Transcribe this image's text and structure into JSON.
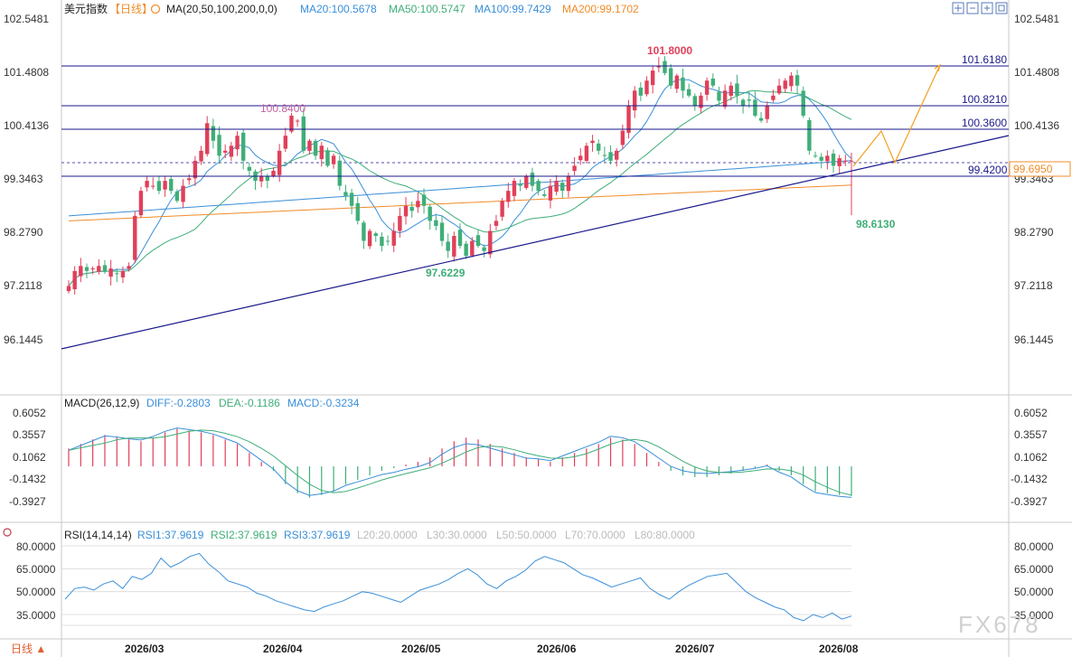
{
  "header": {
    "symbol": "美元指数",
    "period": "【日线】",
    "ma_params": "MA(20,50,100,200,0,0)",
    "ma20": "MA20:100.5678",
    "ma50": "MA50:100.5747",
    "ma100": "MA100:99.7429",
    "ma200": "MA200:99.1702"
  },
  "price_axis": {
    "ticks": [
      "102.5481",
      "101.4808",
      "100.4136",
      "99.3463",
      "98.2790",
      "97.2118",
      "96.1445"
    ],
    "right_ticks": [
      "102.5481",
      "101.4808",
      "100.4136",
      "99.3463",
      "98.2790",
      "97.2118",
      "96.1445"
    ],
    "current_price": "99.6950"
  },
  "annotations": {
    "high": "101.8000",
    "low_may": "97.6229",
    "high_march": "100.8400",
    "low_current": "98.6130",
    "levels": [
      "101.6180",
      "100.8210",
      "100.3600",
      "99.4200"
    ]
  },
  "macd": {
    "title": "MACD(26,12,9)",
    "diff": "DIFF:-0.2803",
    "dea": "DEA:-0.1186",
    "macd": "MACD:-0.3234",
    "ticks": [
      "0.6052",
      "0.3557",
      "0.1062",
      "-0.1432",
      "-0.3927"
    ]
  },
  "rsi": {
    "title": "RSI(14,14,14)",
    "rsi1": "RSI1:37.9619",
    "rsi2": "RSI2:37.9619",
    "rsi3": "RSI3:37.9619",
    "l20": "L20:20.0000",
    "l30": "L30:30.0000",
    "l50": "L50:50.0000",
    "l70": "L70:70.0000",
    "l80": "L80:80.0000",
    "ticks": [
      "80.0000",
      "65.0000",
      "50.0000",
      "35.0000"
    ]
  },
  "x_axis": {
    "period_label": "日线 ▲",
    "dates": [
      "2026/03",
      "2026/04",
      "2026/05",
      "2026/06",
      "2026/07",
      "2026/08"
    ]
  },
  "watermark": "FX678",
  "colors": {
    "up": "#e0405a",
    "down": "#3fae78",
    "ma20": "#3a8fd8",
    "ma50": "#3fae78",
    "ma100": "#3a8fd8",
    "ma200": "#f08c28",
    "level_line": "#1a1a8c",
    "projection": "#f0a020"
  },
  "chart_data": {
    "type": "candlestick",
    "ylim": [
      95.9,
      102.6
    ],
    "closes": [
      97.2,
      97.5,
      97.6,
      97.5,
      97.55,
      97.6,
      97.5,
      97.55,
      97.45,
      97.5,
      97.6,
      98.6,
      99.1,
      99.3,
      99.2,
      99.1,
      99.3,
      99.1,
      98.9,
      99.2,
      99.35,
      99.7,
      99.9,
      100.45,
      100.1,
      99.8,
      99.9,
      100.0,
      100.2,
      99.7,
      99.5,
      99.3,
      99.4,
      99.3,
      99.5,
      99.9,
      100.2,
      100.6,
      100.5,
      99.9,
      100.1,
      99.8,
      100.0,
      99.6,
      99.8,
      99.2,
      99.0,
      98.8,
      98.5,
      98.1,
      98.3,
      98.2,
      98.0,
      98.1,
      98.3,
      98.6,
      98.8,
      98.7,
      98.9,
      98.8,
      98.5,
      98.4,
      98.1,
      97.9,
      98.2,
      98.0,
      97.8,
      98.1,
      98.0,
      97.9,
      98.3,
      98.5,
      98.9,
      99.1,
      99.3,
      99.2,
      99.4,
      99.2,
      99.1,
      99.0,
      99.2,
      99.3,
      99.1,
      99.4,
      99.6,
      99.8,
      100.0,
      100.1,
      99.9,
      99.8,
      99.7,
      99.9,
      100.3,
      100.8,
      101.1,
      101.0,
      101.3,
      101.5,
      101.6,
      101.45,
      101.2,
      101.4,
      101.1,
      101.0,
      100.8,
      101.0,
      101.3,
      101.2,
      100.9,
      101.1,
      101.2,
      101.0,
      100.8,
      100.9,
      100.6,
      100.5,
      100.8,
      101.0,
      101.2,
      101.3,
      101.4,
      101.2,
      100.6,
      99.9,
      99.8,
      99.7,
      99.8,
      99.6,
      99.75,
      99.7,
      99.7
    ],
    "macd_hist": [
      0.2,
      0.25,
      0.3,
      0.35,
      0.33,
      0.3,
      0.28,
      0.32,
      0.38,
      0.42,
      0.4,
      0.38,
      0.35,
      0.3,
      0.25,
      0.15,
      0.05,
      -0.05,
      -0.2,
      -0.3,
      -0.35,
      -0.32,
      -0.28,
      -0.2,
      -0.15,
      -0.1,
      -0.05,
      -0.02,
      0.02,
      0.05,
      0.1,
      0.2,
      0.28,
      0.32,
      0.3,
      0.25,
      0.2,
      0.15,
      0.1,
      0.08,
      0.05,
      0.1,
      0.15,
      0.2,
      0.25,
      0.32,
      0.3,
      0.25,
      0.15,
      0.05,
      -0.05,
      -0.1,
      -0.12,
      -0.12,
      -0.1,
      -0.08,
      -0.05,
      -0.02,
      0.02,
      -0.05,
      -0.1,
      -0.2,
      -0.28,
      -0.3,
      -0.32,
      -0.33
    ],
    "rsi_values": [
      45,
      52,
      53,
      51,
      55,
      57,
      52,
      60,
      58,
      62,
      72,
      66,
      69,
      73,
      75,
      68,
      63,
      57,
      55,
      53,
      49,
      47,
      44,
      42,
      40,
      38,
      37,
      40,
      42,
      44,
      47,
      50,
      49,
      47,
      45,
      43,
      47,
      51,
      53,
      55,
      58,
      62,
      65,
      61,
      55,
      52,
      57,
      60,
      64,
      70,
      73,
      71,
      69,
      65,
      61,
      59,
      56,
      53,
      55,
      57,
      59,
      52,
      48,
      45,
      50,
      54,
      57,
      60,
      61,
      62,
      56,
      50,
      46,
      43,
      40,
      38,
      33,
      31,
      35,
      33,
      36,
      32,
      34
    ]
  }
}
